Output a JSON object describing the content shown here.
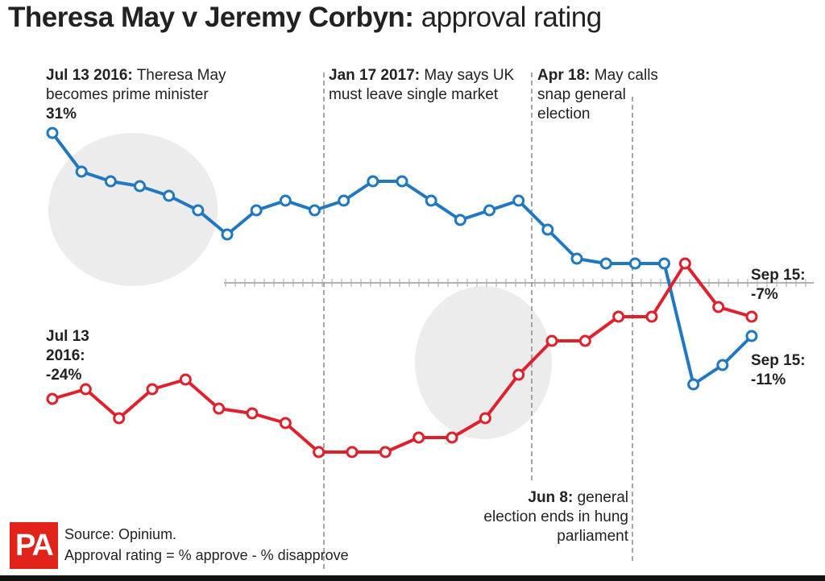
{
  "chart_data": {
    "type": "line",
    "title": [
      "Theresa May v Jeremy Corbyn:",
      "approval rating"
    ],
    "ylim": [
      -40,
      40
    ],
    "yticks": [
      0
    ],
    "series": [
      {
        "color": "#1f78c1",
        "values": [
          31,
          23,
          21,
          20,
          18,
          15,
          10,
          15,
          17,
          15,
          17,
          21,
          21,
          17,
          13,
          15,
          17,
          11,
          5,
          4,
          4,
          4,
          -21,
          -17,
          -11
        ],
        "value_labels": [
          "31%",
          null,
          null,
          null,
          null,
          null,
          null,
          null,
          null,
          null,
          null,
          null,
          null,
          null,
          null,
          null,
          null,
          null,
          null,
          null,
          null,
          null,
          null,
          null,
          "-11%"
        ]
      },
      {
        "color": "#e0202a",
        "values": [
          -24,
          -22,
          -28,
          -22,
          -20,
          -26,
          -27,
          -29,
          -35,
          -35,
          -35,
          -32,
          -32,
          -28,
          -19,
          -12,
          -12,
          -7,
          -7,
          4,
          -5,
          -7
        ],
        "value_labels": [
          "-24%",
          null,
          null,
          null,
          null,
          null,
          null,
          null,
          null,
          null,
          null,
          null,
          null,
          null,
          null,
          null,
          null,
          null,
          null,
          null,
          null,
          "-7%"
        ]
      }
    ],
    "annotations": [
      {
        "date": "Jul 13 2016:",
        "text": "Theresa May becomes prime minister"
      },
      {
        "date": "Jan 17 2017:",
        "text": "May says UK must leave single market"
      },
      {
        "date": "Apr 18:",
        "text": "May calls snap general election"
      },
      {
        "date": "Jun 8:",
        "text": "general election ends in hung parliament"
      },
      {
        "date": "Jul 13 2016:"
      },
      {
        "date": "Sep 15:"
      },
      {
        "date": "Sep 15:"
      }
    ],
    "source": "Source: Opinium.",
    "note": "Approval rating = % approve - % disapprove",
    "logo": "PA"
  }
}
